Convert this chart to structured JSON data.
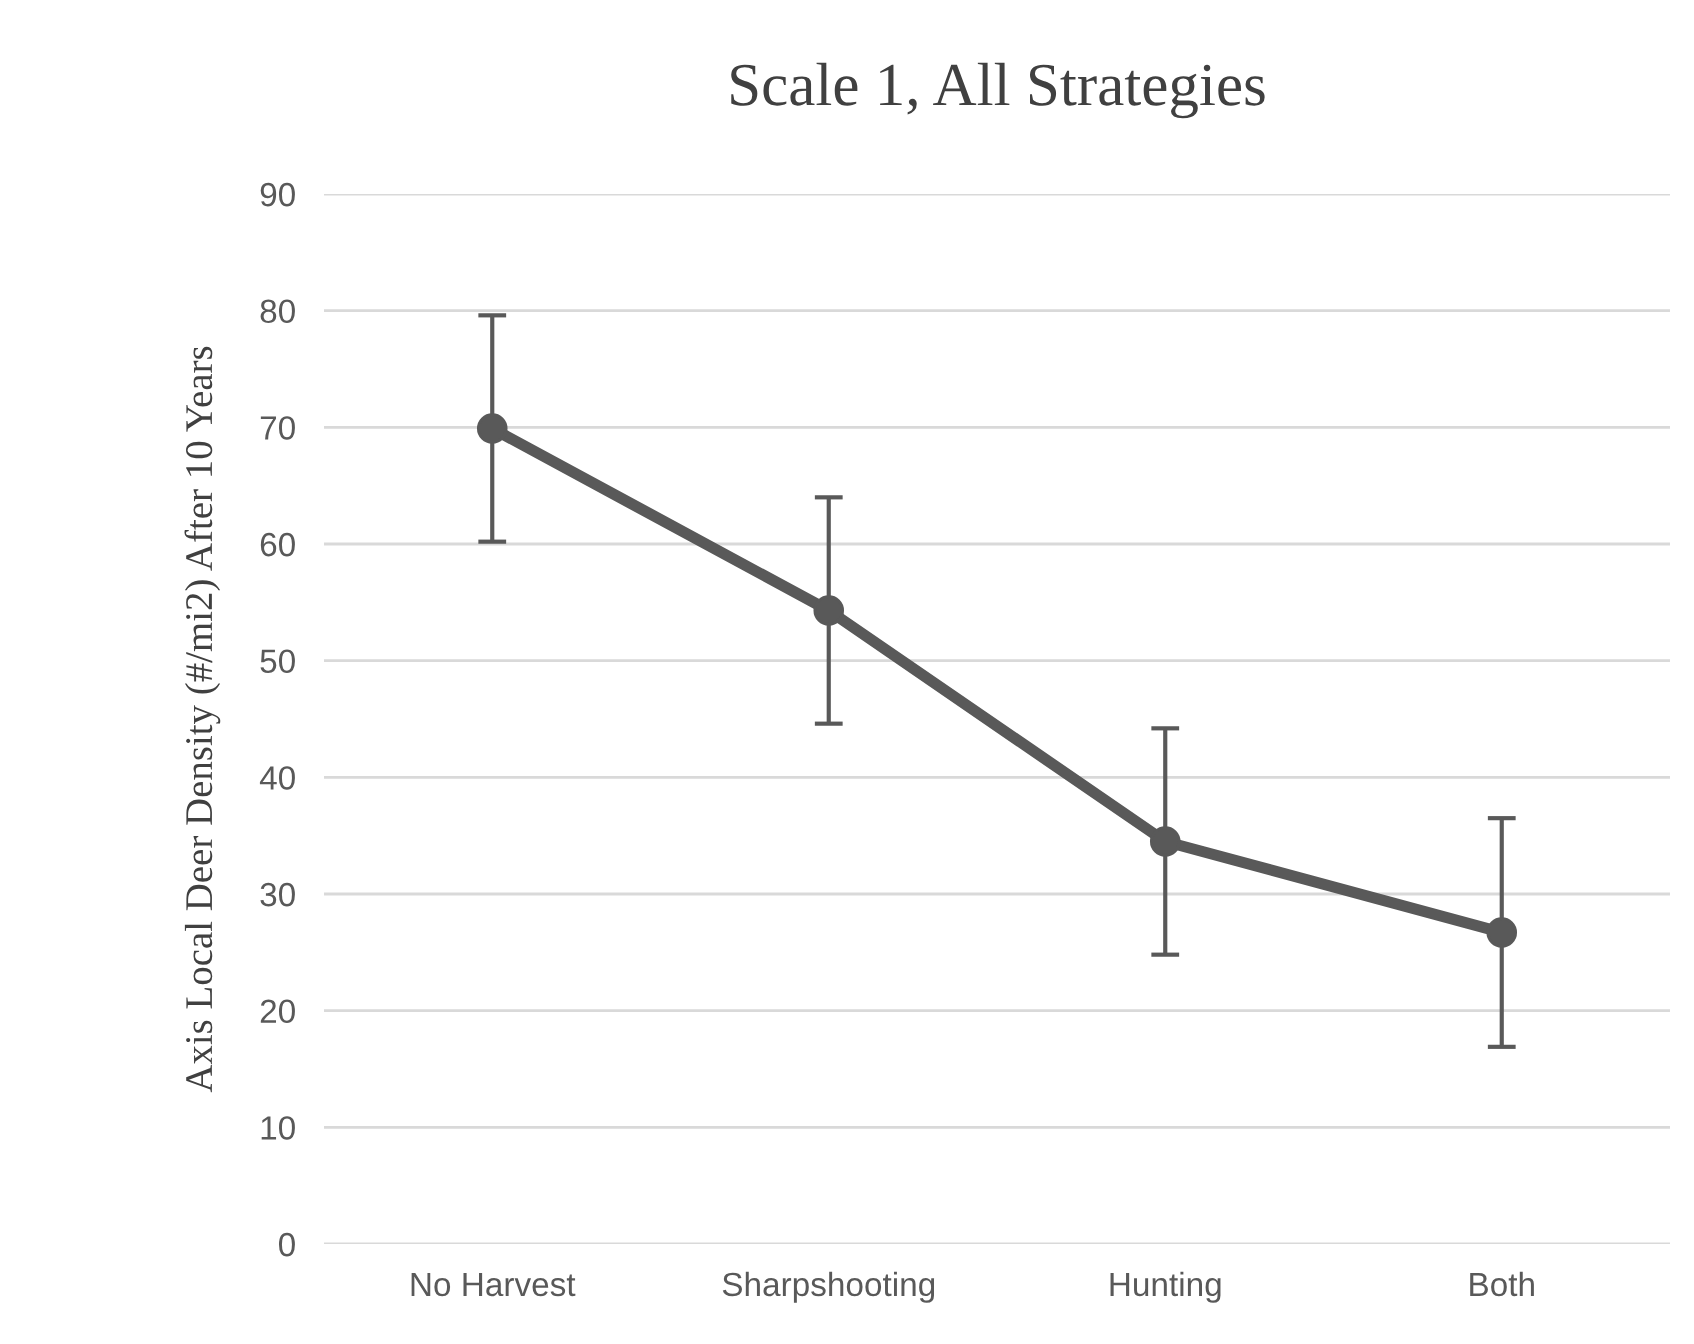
{
  "chart_data": {
    "type": "line",
    "title": "Scale 1, All Strategies",
    "ylabel": "Axis Local Deer Density (#/mi2) After 10 Years",
    "categories": [
      "No Harvest",
      "Sharpshooting",
      "Hunting",
      "Both"
    ],
    "series": [
      {
        "color": "#595959",
        "values": [
          69.9,
          54.3,
          34.5,
          26.7
        ],
        "errors": [
          9.7,
          9.7,
          9.7,
          9.8
        ]
      }
    ],
    "ylim": [
      0,
      90
    ],
    "yticks": [
      0,
      10,
      20,
      30,
      40,
      50,
      60,
      70,
      80,
      90
    ],
    "grid": "y",
    "marker": "circle",
    "line_style": "solid"
  }
}
